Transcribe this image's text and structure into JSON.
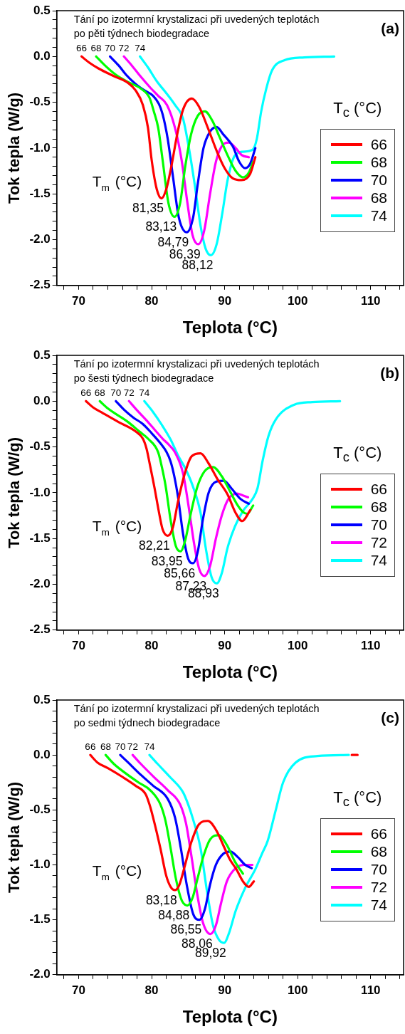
{
  "chart_data": [
    {
      "type": "line",
      "xlabel": "Teplota (°C)",
      "ylabel": "Tok tepla (W/g)",
      "legend_title": "T$_{c}$ (°C)",
      "legend": "right",
      "marker": "none",
      "line_style": "solid",
      "xlim": [
        67,
        114.5
      ],
      "ylim": [
        -2.5,
        0.5
      ],
      "xticks": [
        {
          "value": 68,
          "label": null
        },
        70,
        {
          "value": 72,
          "label": null
        },
        {
          "value": 74,
          "label": null
        },
        {
          "value": 76,
          "label": null
        },
        {
          "value": 78,
          "label": null
        },
        80,
        {
          "value": 82,
          "label": null
        },
        {
          "value": 84,
          "label": null
        },
        {
          "value": 86,
          "label": null
        },
        {
          "value": 88,
          "label": null
        },
        90,
        {
          "value": 92,
          "label": null
        },
        {
          "value": 94,
          "label": null
        },
        {
          "value": 96,
          "label": null
        },
        {
          "value": 98,
          "label": null
        },
        100,
        {
          "value": 102,
          "label": null
        },
        {
          "value": 104,
          "label": null
        },
        {
          "value": 106,
          "label": null
        },
        {
          "value": 108,
          "label": null
        },
        110,
        {
          "value": 112,
          "label": null
        },
        {
          "value": 114,
          "label": null
        }
      ],
      "yticks": [
        {
          "value": -2.5,
          "label": "-2.5"
        },
        {
          "value": -2.4,
          "label": null
        },
        {
          "value": -2.3,
          "label": null
        },
        {
          "value": -2.2,
          "label": null
        },
        {
          "value": -2.1,
          "label": null
        },
        {
          "value": -2,
          "label": "-2.0"
        },
        {
          "value": -1.9,
          "label": null
        },
        {
          "value": -1.8,
          "label": null
        },
        {
          "value": -1.7,
          "label": null
        },
        {
          "value": -1.6,
          "label": null
        },
        {
          "value": -1.5,
          "label": "-1.5"
        },
        {
          "value": -1.4,
          "label": null
        },
        {
          "value": -1.3,
          "label": null
        },
        {
          "value": -1.2,
          "label": null
        },
        {
          "value": -1.1,
          "label": null
        },
        {
          "value": -1,
          "label": "-1.0"
        },
        {
          "value": -0.9,
          "label": null
        },
        {
          "value": -0.8,
          "label": null
        },
        {
          "value": -0.7,
          "label": null
        },
        {
          "value": -0.6,
          "label": null
        },
        {
          "value": -0.5,
          "label": "-0.5"
        },
        {
          "value": -0.4,
          "label": null
        },
        {
          "value": -0.3,
          "label": null
        },
        {
          "value": -0.2,
          "label": null
        },
        {
          "value": -0.1,
          "label": null
        },
        {
          "value": 0,
          "label": "0.0"
        },
        {
          "value": 0.1,
          "label": null
        },
        {
          "value": 0.2,
          "label": null
        },
        {
          "value": 0.3,
          "label": null
        },
        {
          "value": 0.4,
          "label": null
        },
        {
          "value": 0.5,
          "label": "0.5"
        }
      ],
      "series": [
        {
          "name": "66",
          "color": "#ff0000",
          "x": [
            70.4,
            71.5,
            72.7,
            74.7,
            76.8,
            77.8,
            78.8,
            79.5,
            80.0,
            80.7,
            81.35,
            82.0,
            82.7,
            83.5,
            84.3,
            85.5,
            86.5,
            87.7,
            89,
            90,
            91.1,
            92.3,
            93.5,
            94.2
          ],
          "values": [
            0,
            -0.07,
            -0.13,
            -0.21,
            -0.29,
            -0.37,
            -0.53,
            -0.78,
            -1.13,
            -1.45,
            -1.55,
            -1.45,
            -1.2,
            -0.85,
            -0.58,
            -0.46,
            -0.55,
            -0.78,
            -1.05,
            -1.22,
            -1.33,
            -1.35,
            -1.28,
            -1.1
          ]
        },
        {
          "name": "68",
          "color": "#00ff00",
          "x": [
            72.4,
            73.5,
            75.1,
            76.8,
            78.5,
            79.7,
            80.3,
            80.9,
            81.5,
            82.3,
            83.13,
            83.9,
            84.6,
            85.4,
            86.3,
            87.3,
            88.3,
            89.3,
            90.4,
            91.5,
            92.5,
            93.3,
            93.9
          ],
          "values": [
            0,
            -0.09,
            -0.2,
            -0.28,
            -0.35,
            -0.45,
            -0.6,
            -0.78,
            -1.13,
            -1.6,
            -1.75,
            -1.6,
            -1.2,
            -0.85,
            -0.65,
            -0.6,
            -0.7,
            -0.88,
            -1.08,
            -1.25,
            -1.32,
            -1.27,
            -1.15
          ]
        },
        {
          "name": "70",
          "color": "#0000ff",
          "x": [
            74.3,
            75.5,
            76.5,
            77.8,
            79,
            80.2,
            81.0,
            81.5,
            82.2,
            82.9,
            83.7,
            84.79,
            85.7,
            86.3,
            87.1,
            88.0,
            88.9,
            89.8,
            91.1,
            92.0,
            92.8,
            93.5,
            94.2
          ],
          "values": [
            0,
            -0.1,
            -0.2,
            -0.3,
            -0.37,
            -0.43,
            -0.52,
            -0.63,
            -0.9,
            -1.3,
            -1.75,
            -1.92,
            -1.75,
            -1.4,
            -1.0,
            -0.82,
            -0.77,
            -0.85,
            -0.98,
            -1.15,
            -1.22,
            -1.17,
            -1.0
          ]
        },
        {
          "name": "68",
          "color": "#ff00ff",
          "x": [
            76.2,
            77.3,
            78.5,
            79.7,
            80.9,
            82.1,
            83.2,
            84.1,
            84.9,
            85.6,
            86.39,
            87.2,
            88.0,
            88.8,
            89.6,
            90.6,
            91.5,
            92.4,
            93.3
          ],
          "values": [
            0,
            -0.1,
            -0.22,
            -0.33,
            -0.43,
            -0.53,
            -0.78,
            -1.13,
            -1.6,
            -1.95,
            -2.05,
            -1.9,
            -1.5,
            -1.15,
            -0.98,
            -0.94,
            -1.0,
            -1.08,
            -1.1
          ]
        },
        {
          "name": "74",
          "color": "#00ffff",
          "x": [
            78.4,
            79.5,
            80.7,
            82.0,
            83.2,
            84.3,
            85.1,
            85.9,
            86.7,
            87.4,
            88.12,
            88.9,
            89.7,
            90.4,
            91.4,
            92.5,
            93.8,
            94.4,
            95.0,
            95.7,
            96.5,
            98.2,
            100.9,
            105
          ],
          "values": [
            0,
            -0.12,
            -0.27,
            -0.4,
            -0.53,
            -0.68,
            -1.0,
            -1.4,
            -1.85,
            -2.1,
            -2.17,
            -2.05,
            -1.7,
            -1.35,
            -1.08,
            -1.04,
            -1.02,
            -0.9,
            -0.6,
            -0.35,
            -0.15,
            -0.04,
            -0.01,
            0
          ]
        }
      ],
      "annotations": [
        "Tání po izotermní krystalizaci při uvedených teplotách\npo pěti týdnech biodegradace",
        "(a)",
        "T$_{m}$ (°C)",
        {
          "text": "66",
          "x": 70.4,
          "y": 0
        },
        {
          "text": "68",
          "x": 72.4,
          "y": 0
        },
        {
          "text": "70",
          "x": 74.3,
          "y": 0
        },
        {
          "text": "72",
          "x": 76.2,
          "y": 0
        },
        {
          "text": "74",
          "x": 78.4,
          "y": 0
        },
        {
          "text": "81,35",
          "x": 81.35,
          "y": -1.55
        },
        {
          "text": "83,13",
          "x": 83.13,
          "y": -1.75
        },
        {
          "text": "84,79",
          "x": 84.79,
          "y": -1.92
        },
        {
          "text": "86,39",
          "x": 86.39,
          "y": -2.05
        },
        {
          "text": "88,12",
          "x": 88.12,
          "y": -2.17
        }
      ]
    },
    {
      "type": "line",
      "xlabel": "Teplota (°C)",
      "ylabel": "Tok tepla (W/g)",
      "legend_title": "T$_{c}$ (°C)",
      "legend": "right",
      "marker": "none",
      "line_style": "solid",
      "xlim": [
        67,
        114.5
      ],
      "ylim": [
        -2.5,
        0.5
      ],
      "xticks": [
        {
          "value": 68,
          "label": null
        },
        70,
        {
          "value": 72,
          "label": null
        },
        {
          "value": 74,
          "label": null
        },
        {
          "value": 76,
          "label": null
        },
        {
          "value": 78,
          "label": null
        },
        80,
        {
          "value": 82,
          "label": null
        },
        {
          "value": 84,
          "label": null
        },
        {
          "value": 86,
          "label": null
        },
        {
          "value": 88,
          "label": null
        },
        90,
        {
          "value": 92,
          "label": null
        },
        {
          "value": 94,
          "label": null
        },
        {
          "value": 96,
          "label": null
        },
        {
          "value": 98,
          "label": null
        },
        100,
        {
          "value": 102,
          "label": null
        },
        {
          "value": 104,
          "label": null
        },
        {
          "value": 106,
          "label": null
        },
        {
          "value": 108,
          "label": null
        },
        110,
        {
          "value": 112,
          "label": null
        },
        {
          "value": 114,
          "label": null
        }
      ],
      "yticks": [
        {
          "value": -2.5,
          "label": "-2.5"
        },
        {
          "value": -2.4,
          "label": null
        },
        {
          "value": -2.3,
          "label": null
        },
        {
          "value": -2.2,
          "label": null
        },
        {
          "value": -2.1,
          "label": null
        },
        {
          "value": -2,
          "label": "-2.0"
        },
        {
          "value": -1.9,
          "label": null
        },
        {
          "value": -1.8,
          "label": null
        },
        {
          "value": -1.7,
          "label": null
        },
        {
          "value": -1.6,
          "label": null
        },
        {
          "value": -1.5,
          "label": "-1.5"
        },
        {
          "value": -1.4,
          "label": null
        },
        {
          "value": -1.3,
          "label": null
        },
        {
          "value": -1.2,
          "label": null
        },
        {
          "value": -1.1,
          "label": null
        },
        {
          "value": -1,
          "label": "-1.0"
        },
        {
          "value": -0.9,
          "label": null
        },
        {
          "value": -0.8,
          "label": null
        },
        {
          "value": -0.7,
          "label": null
        },
        {
          "value": -0.6,
          "label": null
        },
        {
          "value": -0.5,
          "label": "-0.5"
        },
        {
          "value": -0.4,
          "label": null
        },
        {
          "value": -0.3,
          "label": null
        },
        {
          "value": -0.2,
          "label": null
        },
        {
          "value": -0.1,
          "label": null
        },
        {
          "value": 0,
          "label": "0.0"
        },
        {
          "value": 0.1,
          "label": null
        },
        {
          "value": 0.2,
          "label": null
        },
        {
          "value": 0.3,
          "label": null
        },
        {
          "value": 0.4,
          "label": null
        },
        {
          "value": 0.5,
          "label": "0.5"
        }
      ],
      "series": [
        {
          "name": "66",
          "color": "#ff0000",
          "x": [
            71.0,
            72.0,
            73.3,
            75.5,
            77.8,
            78.8,
            79.3,
            79.8,
            80.4,
            80.9,
            81.5,
            82.21,
            82.9,
            83.6,
            84.5,
            85.5,
            86.7,
            87.8,
            89.0,
            90.4,
            91.5,
            92.4,
            93.5
          ],
          "values": [
            0,
            -0.07,
            -0.13,
            -0.23,
            -0.33,
            -0.41,
            -0.52,
            -0.71,
            -0.95,
            -1.17,
            -1.4,
            -1.47,
            -1.38,
            -1.1,
            -0.8,
            -0.6,
            -0.57,
            -0.68,
            -0.85,
            -1.02,
            -1.22,
            -1.31,
            -1.19
          ]
        },
        {
          "name": "68",
          "color": "#00ff00",
          "x": [
            72.9,
            74.0,
            76.8,
            78.3,
            79.5,
            80.9,
            81.4,
            81.9,
            82.6,
            83.3,
            83.95,
            84.6,
            85.3,
            86.2,
            87.2,
            88.4,
            89.6,
            90.7,
            91.8,
            92.5,
            93.1,
            93.9
          ],
          "values": [
            0,
            -0.08,
            -0.23,
            -0.33,
            -0.41,
            -0.56,
            -0.72,
            -0.92,
            -1.3,
            -1.58,
            -1.64,
            -1.52,
            -1.25,
            -0.95,
            -0.77,
            -0.72,
            -0.82,
            -0.98,
            -1.14,
            -1.21,
            -1.23,
            -1.14
          ]
        },
        {
          "name": "70",
          "color": "#0000ff",
          "x": [
            75.1,
            76.3,
            77.5,
            78.8,
            80,
            81.2,
            82.0,
            82.6,
            83.1,
            83.6,
            84.3,
            85.0,
            85.66,
            86.3,
            87.0,
            87.8,
            88.8,
            89.9,
            90.9,
            92.2,
            93.3
          ],
          "values": [
            0,
            -0.1,
            -0.18,
            -0.25,
            -0.35,
            -0.46,
            -0.55,
            -0.66,
            -0.82,
            -1.04,
            -1.45,
            -1.72,
            -1.77,
            -1.65,
            -1.3,
            -1.0,
            -0.88,
            -0.87,
            -0.95,
            -1.07,
            -1.12
          ]
        },
        {
          "name": "72",
          "color": "#ff00ff",
          "x": [
            76.9,
            78,
            79.3,
            80.5,
            81.5,
            82.4,
            83.2,
            84.3,
            85.1,
            85.8,
            86.5,
            87.23,
            88.0,
            88.8,
            89.6,
            90.5,
            91.7,
            92.5,
            93.2
          ],
          "values": [
            0,
            -0.1,
            -0.21,
            -0.32,
            -0.41,
            -0.48,
            -0.56,
            -0.79,
            -1.17,
            -1.55,
            -1.83,
            -1.91,
            -1.8,
            -1.5,
            -1.25,
            -1.07,
            -1.01,
            -1.03,
            -1.05
          ]
        },
        {
          "name": "74",
          "color": "#00ffff",
          "x": [
            79.0,
            80.2,
            81.4,
            82.6,
            83.6,
            84.7,
            85.6,
            86.7,
            87.4,
            88.2,
            88.93,
            89.6,
            90.4,
            91.4,
            92.5,
            93.8,
            94.5,
            95.2,
            96.0,
            97.0,
            99.5,
            102,
            105.8
          ],
          "values": [
            0,
            -0.12,
            -0.26,
            -0.42,
            -0.59,
            -0.75,
            -0.92,
            -1.22,
            -1.6,
            -1.92,
            -1.99,
            -1.88,
            -1.6,
            -1.37,
            -1.2,
            -1.07,
            -0.95,
            -0.65,
            -0.38,
            -0.2,
            -0.04,
            -0.01,
            0
          ]
        }
      ],
      "annotations": [
        "Tání po izotermní krystalizaci při uvedených teplotách\npo šesti týdnech biodegradace",
        "(b)",
        "T$_{m}$ (°C)",
        {
          "text": "66",
          "x": 71.0,
          "y": 0
        },
        {
          "text": "68",
          "x": 72.9,
          "y": 0
        },
        {
          "text": "70",
          "x": 75.1,
          "y": 0
        },
        {
          "text": "72",
          "x": 76.9,
          "y": 0
        },
        {
          "text": "74",
          "x": 79.0,
          "y": 0
        },
        {
          "text": "82,21",
          "x": 82.21,
          "y": -1.47
        },
        {
          "text": "83,95",
          "x": 83.95,
          "y": -1.64
        },
        {
          "text": "85,66",
          "x": 85.66,
          "y": -1.77
        },
        {
          "text": "87,23",
          "x": 87.23,
          "y": -1.91
        },
        {
          "text": "88,93",
          "x": 88.93,
          "y": -1.99
        }
      ]
    },
    {
      "type": "line",
      "xlabel": "Teplota (°C)",
      "ylabel": "Tok tepla (W/g)",
      "legend_title": "T$_{c}$ (°C)",
      "legend": "right",
      "marker": "none",
      "line_style": "solid",
      "xlim": [
        67,
        114.5
      ],
      "ylim": [
        -2,
        0.5
      ],
      "xticks": [
        {
          "value": 68,
          "label": null
        },
        70,
        {
          "value": 72,
          "label": null
        },
        {
          "value": 74,
          "label": null
        },
        {
          "value": 76,
          "label": null
        },
        {
          "value": 78,
          "label": null
        },
        80,
        {
          "value": 82,
          "label": null
        },
        {
          "value": 84,
          "label": null
        },
        {
          "value": 86,
          "label": null
        },
        {
          "value": 88,
          "label": null
        },
        90,
        {
          "value": 92,
          "label": null
        },
        {
          "value": 94,
          "label": null
        },
        {
          "value": 96,
          "label": null
        },
        {
          "value": 98,
          "label": null
        },
        100,
        {
          "value": 102,
          "label": null
        },
        {
          "value": 104,
          "label": null
        },
        {
          "value": 106,
          "label": null
        },
        {
          "value": 108,
          "label": null
        },
        110,
        {
          "value": 112,
          "label": null
        },
        {
          "value": 114,
          "label": null
        }
      ],
      "yticks": [
        {
          "value": -2,
          "label": "-2.0"
        },
        {
          "value": -1.9,
          "label": null
        },
        {
          "value": -1.8,
          "label": null
        },
        {
          "value": -1.7,
          "label": null
        },
        {
          "value": -1.6,
          "label": null
        },
        {
          "value": -1.5,
          "label": "-1.5"
        },
        {
          "value": -1.4,
          "label": null
        },
        {
          "value": -1.3,
          "label": null
        },
        {
          "value": -1.2,
          "label": null
        },
        {
          "value": -1.1,
          "label": null
        },
        {
          "value": -1,
          "label": "-1.0"
        },
        {
          "value": -0.9,
          "label": null
        },
        {
          "value": -0.8,
          "label": null
        },
        {
          "value": -0.7,
          "label": null
        },
        {
          "value": -0.6,
          "label": null
        },
        {
          "value": -0.5,
          "label": "-0.5"
        },
        {
          "value": -0.4,
          "label": null
        },
        {
          "value": -0.3,
          "label": null
        },
        {
          "value": -0.2,
          "label": null
        },
        {
          "value": -0.1,
          "label": null
        },
        {
          "value": 0,
          "label": "0.0"
        },
        {
          "value": 0.1,
          "label": null
        },
        {
          "value": 0.2,
          "label": null
        },
        {
          "value": 0.3,
          "label": null
        },
        {
          "value": 0.4,
          "label": null
        },
        {
          "value": 0.5,
          "label": "0.5"
        }
      ],
      "series": [
        {
          "name": "66",
          "color": "#ff0000",
          "x": [
            71.6,
            72.6,
            74.0,
            76,
            77.8,
            79.2,
            79.7,
            80.2,
            81.2,
            82.0,
            82.6,
            83.18,
            83.8,
            84.5,
            85.4,
            86.5,
            87.7,
            88.8,
            89.8,
            90.7,
            91.6,
            92.5,
            93.3,
            94.0,
            null,
            107.4,
            108.2
          ],
          "values": [
            0,
            -0.07,
            -0.12,
            -0.2,
            -0.28,
            -0.36,
            -0.45,
            -0.57,
            -0.85,
            -1.1,
            -1.2,
            -1.23,
            -1.18,
            -1.02,
            -0.8,
            -0.63,
            -0.6,
            -0.68,
            -0.82,
            -0.95,
            -1.04,
            -1.15,
            -1.2,
            -1.15,
            null,
            0,
            0
          ]
        },
        {
          "name": "68",
          "color": "#00ff00",
          "x": [
            73.7,
            74.8,
            76.5,
            78.2,
            79.8,
            81.2,
            81.9,
            82.6,
            83.3,
            84.1,
            84.88,
            85.6,
            86.3,
            87.1,
            88.0,
            89.2,
            90.3,
            91.4,
            92.5
          ],
          "values": [
            0,
            -0.08,
            -0.17,
            -0.25,
            -0.32,
            -0.45,
            -0.6,
            -0.85,
            -1.12,
            -1.32,
            -1.37,
            -1.3,
            -1.12,
            -0.92,
            -0.77,
            -0.73,
            -0.82,
            -0.97,
            -1.08
          ]
        },
        {
          "name": "70",
          "color": "#0000ff",
          "x": [
            75.7,
            76.8,
            78.5,
            80.2,
            82.2,
            83.2,
            84.0,
            84.8,
            85.7,
            86.55,
            87.3,
            88.0,
            88.8,
            89.8,
            90.8,
            91.8,
            92.8,
            93.7
          ],
          "values": [
            0,
            -0.07,
            -0.18,
            -0.28,
            -0.4,
            -0.57,
            -0.85,
            -1.18,
            -1.45,
            -1.5,
            -1.4,
            -1.18,
            -1.0,
            -0.9,
            -0.88,
            -0.93,
            -1.0,
            -1.03
          ]
        },
        {
          "name": "72",
          "color": "#ff00ff",
          "x": [
            77.4,
            78.5,
            80.3,
            82.2,
            83.9,
            84.7,
            85.4,
            86.2,
            87.0,
            88.06,
            88.8,
            89.5,
            90.3,
            91.5,
            92.8,
            93.8
          ],
          "values": [
            0,
            -0.08,
            -0.2,
            -0.32,
            -0.45,
            -0.62,
            -0.9,
            -1.25,
            -1.52,
            -1.63,
            -1.55,
            -1.35,
            -1.15,
            -1.03,
            -1.0,
            -1.0
          ]
        },
        {
          "name": "74",
          "color": "#00ffff",
          "x": [
            79.7,
            80.8,
            82.5,
            84.3,
            85.0,
            85.6,
            86.7,
            87.6,
            88.4,
            89.2,
            89.92,
            90.6,
            91.5,
            92.8,
            94.2,
            95.1,
            95.9,
            97.0,
            98.0,
            99.7,
            102.7,
            107
          ],
          "values": [
            0,
            -0.08,
            -0.2,
            -0.34,
            -0.45,
            -0.57,
            -0.85,
            -1.25,
            -1.55,
            -1.68,
            -1.71,
            -1.62,
            -1.42,
            -1.21,
            -1.04,
            -0.9,
            -0.78,
            -0.5,
            -0.25,
            -0.07,
            -0.01,
            0
          ]
        }
      ],
      "annotations": [
        "Tání po izotermní krystalizaci při uvedených teplotách\npo sedmi týdnech biodegradace",
        "(c)",
        "T$_{m}$ (°C)",
        {
          "text": "66",
          "x": 71.6,
          "y": 0
        },
        {
          "text": "68",
          "x": 73.7,
          "y": 0
        },
        {
          "text": "70",
          "x": 75.7,
          "y": 0
        },
        {
          "text": "72",
          "x": 77.4,
          "y": 0
        },
        {
          "text": "74",
          "x": 79.7,
          "y": 0
        },
        {
          "text": "83,18",
          "x": 83.18,
          "y": -1.23
        },
        {
          "text": "84,88",
          "x": 84.88,
          "y": -1.37
        },
        {
          "text": "86,55",
          "x": 86.55,
          "y": -1.5
        },
        {
          "text": "88,06",
          "x": 88.06,
          "y": -1.63
        },
        {
          "text": "89,92",
          "x": 89.92,
          "y": -1.71
        }
      ]
    }
  ]
}
